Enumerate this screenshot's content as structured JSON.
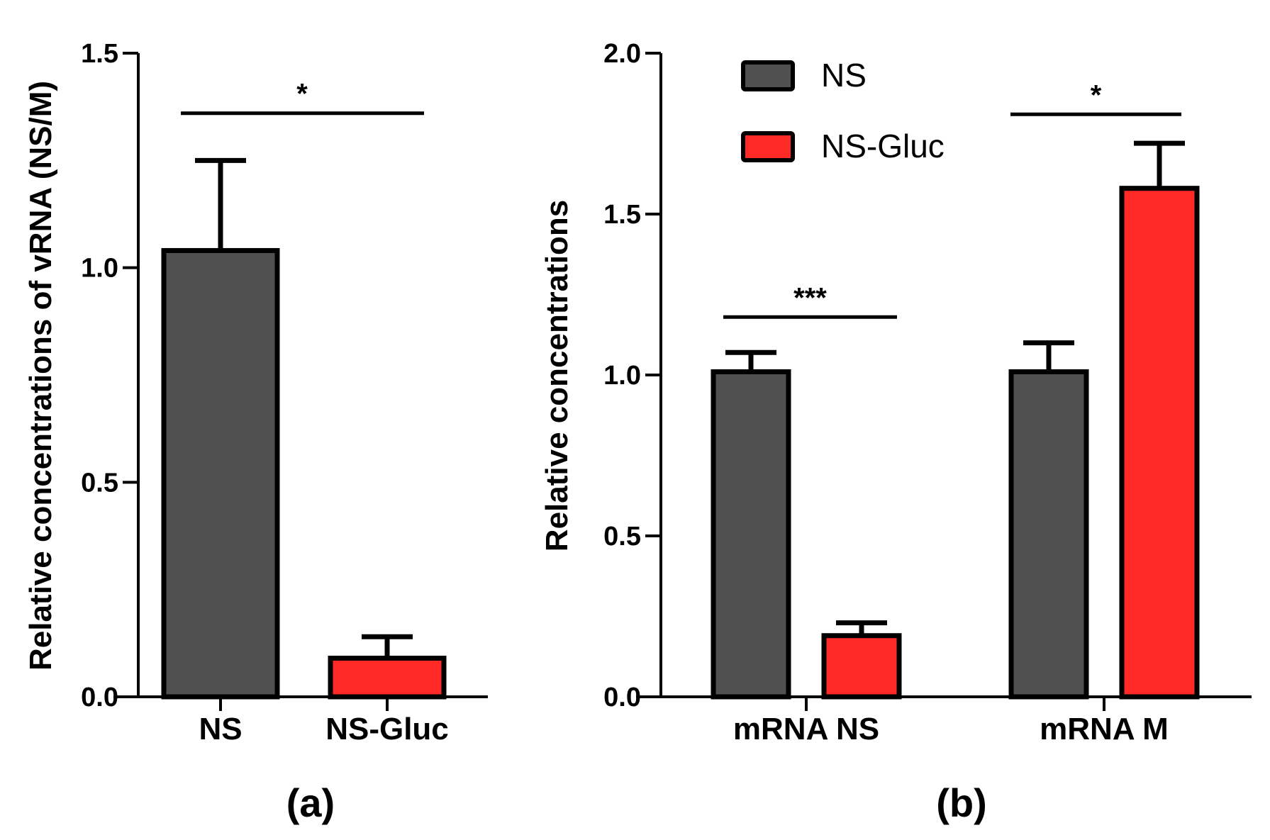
{
  "colors": {
    "NS": "#505050",
    "NS-Gluc": "#ff2a25",
    "outline": "#000000"
  },
  "chart_data": [
    {
      "type": "bar",
      "panel": "(a)",
      "categories": [
        "NS",
        "NS-Gluc"
      ],
      "values": [
        1.04,
        0.09
      ],
      "errors": [
        0.21,
        0.05
      ],
      "series_of_bar": [
        "NS",
        "NS-Gluc"
      ],
      "ylabel": "Relative concentrations of vRNA (NS/M)",
      "xlabel": "",
      "ylim": [
        0,
        1.5
      ],
      "yticks": [
        "0.0",
        "0.5",
        "1.0",
        "1.5"
      ],
      "significance": [
        {
          "label": "*",
          "level": 1.36
        }
      ]
    },
    {
      "type": "bar",
      "panel": "(b)",
      "categories": [
        "mRNA NS",
        "mRNA M"
      ],
      "series": [
        {
          "name": "NS",
          "values": [
            1.01,
            1.01
          ],
          "errors": [
            0.06,
            0.09
          ]
        },
        {
          "name": "NS-Gluc",
          "values": [
            0.19,
            1.58
          ],
          "errors": [
            0.04,
            0.14
          ]
        }
      ],
      "ylabel": "Relative concentrations",
      "xlabel": "",
      "ylim": [
        0,
        2.0
      ],
      "yticks": [
        "0.0",
        "0.5",
        "1.0",
        "1.5",
        "2.0"
      ],
      "legend": [
        "NS",
        "NS-Gluc"
      ],
      "legend_position": "top-left",
      "significance": [
        {
          "label": "***",
          "level": 1.18
        },
        {
          "label": "*",
          "level": 1.81
        }
      ]
    }
  ]
}
